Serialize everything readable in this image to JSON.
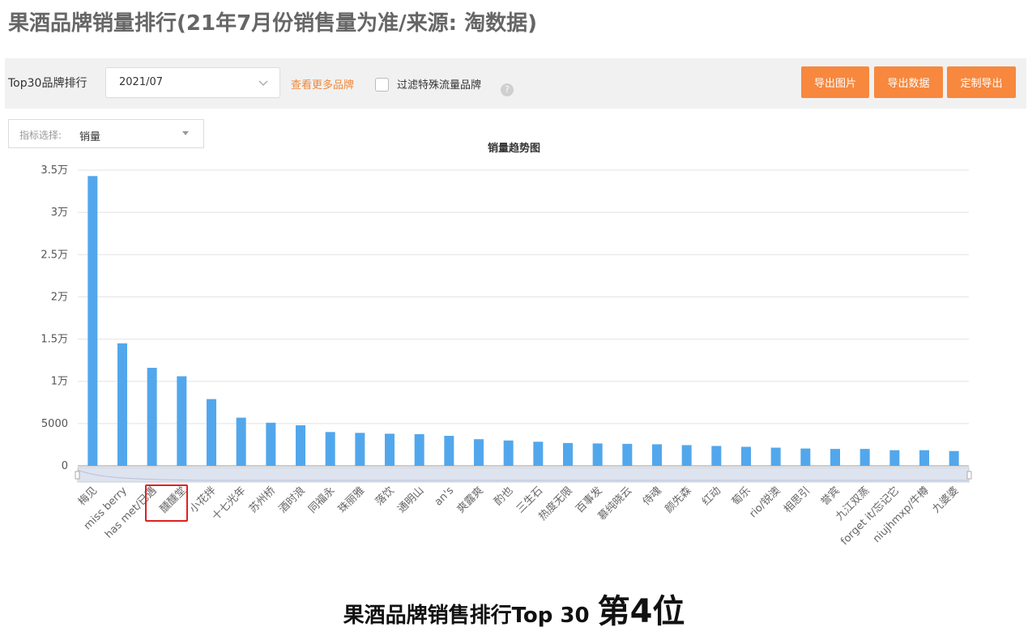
{
  "page": {
    "title": "果酒品牌销量排行(21年7月份销售量为准/来源: 淘数据)"
  },
  "toolbar": {
    "label": "Top30品牌排行",
    "date_value": "2021/07",
    "more_link": "查看更多品牌",
    "filter_label": "过滤特殊流量品牌",
    "help_icon": "question-icon",
    "buttons": [
      "导出图片",
      "导出数据",
      "定制导出"
    ]
  },
  "metric": {
    "label": "指标选择:",
    "value": "销量"
  },
  "caption": {
    "main": "果酒品牌销售排行Top 30",
    "rank": "第4位"
  },
  "colors": {
    "bar": "#52a7ec",
    "accent": "#f7883e",
    "highlight": "#e02020"
  },
  "chart_data": {
    "type": "bar",
    "title": "销量趋势图",
    "categories": [
      "梅见",
      "miss berry",
      "has met/已遇",
      "醺醺堂",
      "小花拌",
      "十七光年",
      "苏州桥",
      "酒时浪",
      "同福永",
      "珠丽雅",
      "落饮",
      "通明山",
      "an's",
      "爽露爽",
      "酌也",
      "三生石",
      "热度无限",
      "百事发",
      "慕纯晓云",
      "侍魂",
      "颜先森",
      "红动",
      "萄乐",
      "rio/锐澳",
      "相思引",
      "誉宾",
      "九江双蒸",
      "forget it/忘记它",
      "niujhmxp/牛樽",
      "九婆婆"
    ],
    "values": [
      34300,
      14500,
      11600,
      10600,
      7900,
      5700,
      5100,
      4800,
      4000,
      3900,
      3800,
      3750,
      3550,
      3150,
      3000,
      2850,
      2700,
      2650,
      2600,
      2550,
      2450,
      2350,
      2250,
      2150,
      2050,
      2000,
      2000,
      1850,
      1850,
      1750
    ],
    "y_ticks": [
      "0",
      "5000",
      "1万",
      "1.5万",
      "2万",
      "2.5万",
      "3万",
      "3.5万"
    ],
    "ylim": [
      0,
      35000
    ],
    "grid": true
  }
}
